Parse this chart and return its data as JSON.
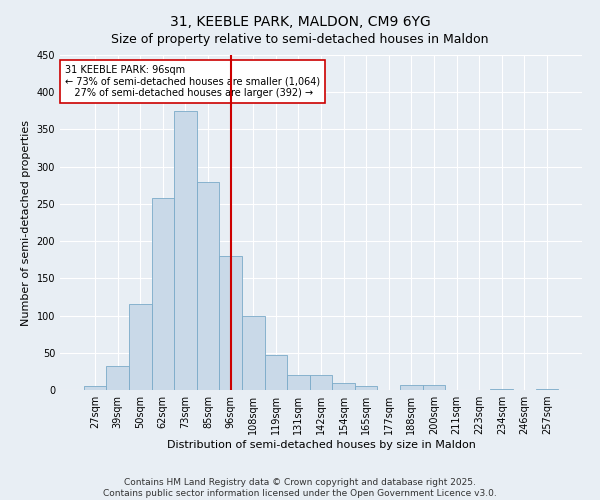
{
  "title_line1": "31, KEEBLE PARK, MALDON, CM9 6YG",
  "title_line2": "Size of property relative to semi-detached houses in Maldon",
  "xlabel": "Distribution of semi-detached houses by size in Maldon",
  "ylabel": "Number of semi-detached properties",
  "categories": [
    "27sqm",
    "39sqm",
    "50sqm",
    "62sqm",
    "73sqm",
    "85sqm",
    "96sqm",
    "108sqm",
    "119sqm",
    "131sqm",
    "142sqm",
    "154sqm",
    "165sqm",
    "177sqm",
    "188sqm",
    "200sqm",
    "211sqm",
    "223sqm",
    "234sqm",
    "246sqm",
    "257sqm"
  ],
  "bar_heights": [
    5,
    32,
    115,
    258,
    375,
    280,
    180,
    100,
    47,
    20,
    20,
    10,
    5,
    0,
    7,
    7,
    0,
    0,
    2,
    0,
    1
  ],
  "bar_color": "#c9d9e8",
  "bar_edge_color": "#7aaac8",
  "vline_x_index": 6,
  "vline_color": "#cc0000",
  "annotation_text": "31 KEEBLE PARK: 96sqm\n← 73% of semi-detached houses are smaller (1,064)\n   27% of semi-detached houses are larger (392) →",
  "annotation_box_color": "#ffffff",
  "annotation_box_edge": "#cc0000",
  "ylim": [
    0,
    450
  ],
  "yticks": [
    0,
    50,
    100,
    150,
    200,
    250,
    300,
    350,
    400,
    450
  ],
  "footnote": "Contains HM Land Registry data © Crown copyright and database right 2025.\nContains public sector information licensed under the Open Government Licence v3.0.",
  "background_color": "#e8eef4",
  "plot_background": "#e8eef4",
  "title_fontsize": 10,
  "subtitle_fontsize": 9,
  "axis_label_fontsize": 8,
  "tick_fontsize": 7,
  "annotation_fontsize": 7,
  "footnote_fontsize": 6.5
}
